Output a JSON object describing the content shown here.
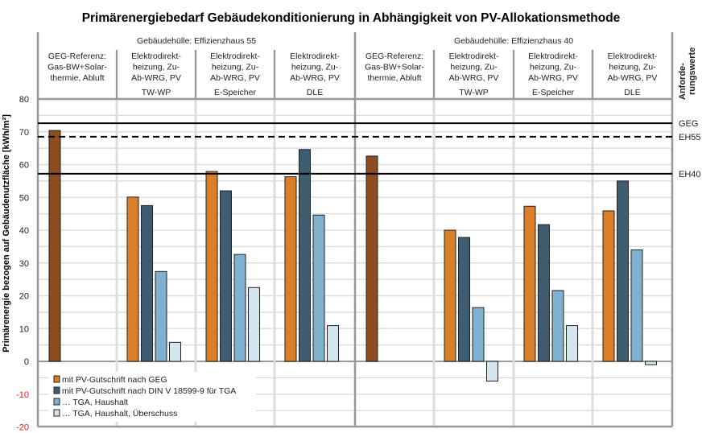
{
  "chart_data": {
    "type": "bar",
    "title": "Primärenergiebedarf Gebäudekonditionierung in Abhängigkeit von PV-Allokationsmethode",
    "ylabel": "Primärenergie bezogen auf Gebäudenutzfläche [kWh/m²]",
    "ylim": [
      -20,
      80
    ],
    "yticks": [
      "80",
      "70",
      "60",
      "50",
      "40",
      "30",
      "20",
      "10",
      "0",
      "-10",
      "-20"
    ],
    "grid": true,
    "legend_position": "bottom-left",
    "groups": [
      {
        "label": "Gebäudehülle: Effizienzhaus 55",
        "categories": [
          {
            "lines": [
              "GEG-Referenz:",
              "Gas-BW+Solar-",
              "thermie, Abluft"
            ],
            "sub": "",
            "values": [
              70.4
            ]
          },
          {
            "lines": [
              "Elektrodirekt-",
              "heizung, Zu-",
              "Ab-WRG, PV"
            ],
            "sub": "TW-WP",
            "values": [
              50.1,
              47.5,
              27.4,
              5.8
            ]
          },
          {
            "lines": [
              "Elektrodirekt-",
              "heizung, Zu-",
              "Ab-WRG, PV"
            ],
            "sub": "E-Speicher",
            "values": [
              57.9,
              52.0,
              32.6,
              22.5
            ]
          },
          {
            "lines": [
              "Elektrodirekt-",
              "heizung, Zu-",
              "Ab-WRG, PV"
            ],
            "sub": "DLE",
            "values": [
              56.3,
              64.6,
              44.6,
              10.9
            ]
          }
        ]
      },
      {
        "label": "Gebäudehülle: Effizienzhaus 40",
        "categories": [
          {
            "lines": [
              "GEG-Referenz:",
              "Gas-BW+Solar-",
              "thermie, Abluft"
            ],
            "sub": "",
            "values": [
              62.6
            ]
          },
          {
            "lines": [
              "Elektrodirekt-",
              "heizung, Zu-",
              "Ab-WRG, PV"
            ],
            "sub": "TW-WP",
            "values": [
              40.0,
              37.8,
              16.4,
              -6.0
            ]
          },
          {
            "lines": [
              "Elektrodirekt-",
              "heizung, Zu-",
              "Ab-WRG, PV"
            ],
            "sub": "E-Speicher",
            "values": [
              47.3,
              41.7,
              21.6,
              10.9
            ]
          },
          {
            "lines": [
              "Elektrodirekt-",
              "heizung, Zu-",
              "Ab-WRG, PV"
            ],
            "sub": "DLE",
            "values": [
              45.9,
              55.0,
              34.0,
              -1.0
            ]
          }
        ]
      }
    ],
    "reference_color": "#8b4c1f",
    "series": [
      {
        "name": "mit PV-Gutschrift nach GEG",
        "color": "#d97f2a"
      },
      {
        "name": "mit PV-Gutschrift nach DIN V 18599-9 für TGA",
        "color": "#3f5d6e"
      },
      {
        "name": "… TGA, Haushalt",
        "color": "#80b2cf"
      },
      {
        "name": "… TGA, Haushalt, Überschuss",
        "color": "#d3e6ef"
      }
    ],
    "reference_lines_title": [
      "Anforde-",
      "rungswerte"
    ],
    "reference_lines": [
      {
        "name": "GEG",
        "value": 72.6,
        "style": "solid"
      },
      {
        "name": "EH55",
        "value": 68.5,
        "style": "dashed"
      },
      {
        "name": "EH40",
        "value": 57.2,
        "style": "solid"
      }
    ],
    "negative_tick_color": "#e02020"
  }
}
